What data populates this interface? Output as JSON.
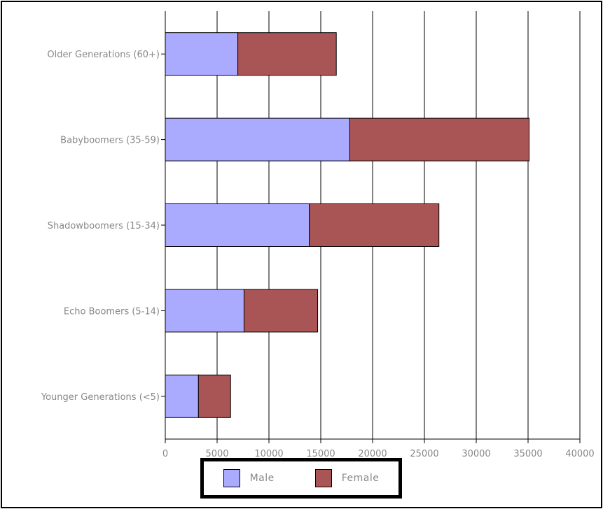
{
  "chart_data": {
    "type": "bar",
    "orientation": "horizontal",
    "stacked": true,
    "categories": [
      "Older Generations (60+)",
      "Babyboomers (35-59)",
      "Shadowboomers (15-34)",
      "Echo Boomers (5-14)",
      "Younger Generations (<5)"
    ],
    "series": [
      {
        "name": "Male",
        "color": "#aaaaff",
        "values": [
          7000,
          17800,
          13900,
          7600,
          3200
        ]
      },
      {
        "name": "Female",
        "color": "#aa5555",
        "values": [
          9500,
          17300,
          12500,
          7100,
          3100
        ]
      }
    ],
    "xlim": [
      0,
      40000
    ],
    "xticks": [
      0,
      5000,
      10000,
      15000,
      20000,
      25000,
      30000,
      35000,
      40000
    ],
    "grid": true,
    "legend_position": "bottom"
  }
}
